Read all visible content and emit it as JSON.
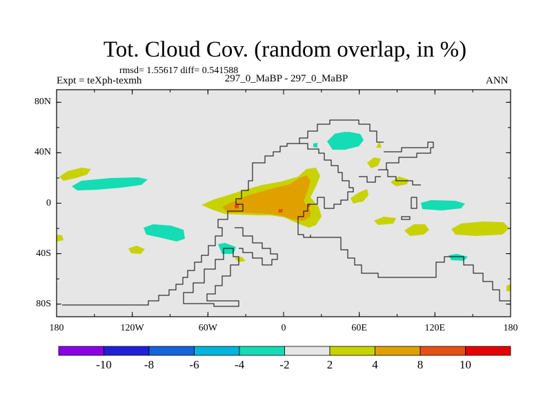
{
  "title": "Tot. Cloud Cov. (random overlap, in %)",
  "stats": "rmsd= 1.55617 diff= 0.541588",
  "experiment_label": "Expt = teXph-texmh",
  "comparison_label": "297_0_MaBP - 297_0_MaBP",
  "season": "ANN",
  "y_axis": {
    "ticks": [
      {
        "value": 80,
        "label": "80N"
      },
      {
        "value": 40,
        "label": "40N"
      },
      {
        "value": 0,
        "label": "0"
      },
      {
        "value": -40,
        "label": "40S"
      },
      {
        "value": -80,
        "label": "80S"
      }
    ]
  },
  "x_axis": {
    "ticks": [
      {
        "value": -180,
        "label": "180"
      },
      {
        "value": -120,
        "label": "120W"
      },
      {
        "value": -60,
        "label": "60W"
      },
      {
        "value": 0,
        "label": "0"
      },
      {
        "value": 60,
        "label": "60E"
      },
      {
        "value": 120,
        "label": "120E"
      },
      {
        "value": 180,
        "label": "180"
      }
    ]
  },
  "colorbar": {
    "bins": [
      {
        "color": "#8a00e6"
      },
      {
        "color": "#2020d8"
      },
      {
        "color": "#1464dc"
      },
      {
        "color": "#00b4dc"
      },
      {
        "color": "#14dcb4"
      },
      {
        "color": "#e6e6e6"
      },
      {
        "color": "#c8d200"
      },
      {
        "color": "#e0a000"
      },
      {
        "color": "#e65014"
      },
      {
        "color": "#e60000"
      }
    ],
    "labels": [
      {
        "value": -10,
        "text": "-10"
      },
      {
        "value": -8,
        "text": "-8"
      },
      {
        "value": -6,
        "text": "-6"
      },
      {
        "value": -4,
        "text": "-4"
      },
      {
        "value": -2,
        "text": "-2"
      },
      {
        "value": 2,
        "text": "2"
      },
      {
        "value": 4,
        "text": "4"
      },
      {
        "value": 8,
        "text": "8"
      },
      {
        "value": 10,
        "text": "10"
      }
    ]
  },
  "colors": {
    "background": "#e6e6e6",
    "neg_2_4": "#14dcb4",
    "pos_2_4": "#c8d200",
    "pos_4_8": "#e0a000",
    "pos_8_10": "#e65014"
  }
}
